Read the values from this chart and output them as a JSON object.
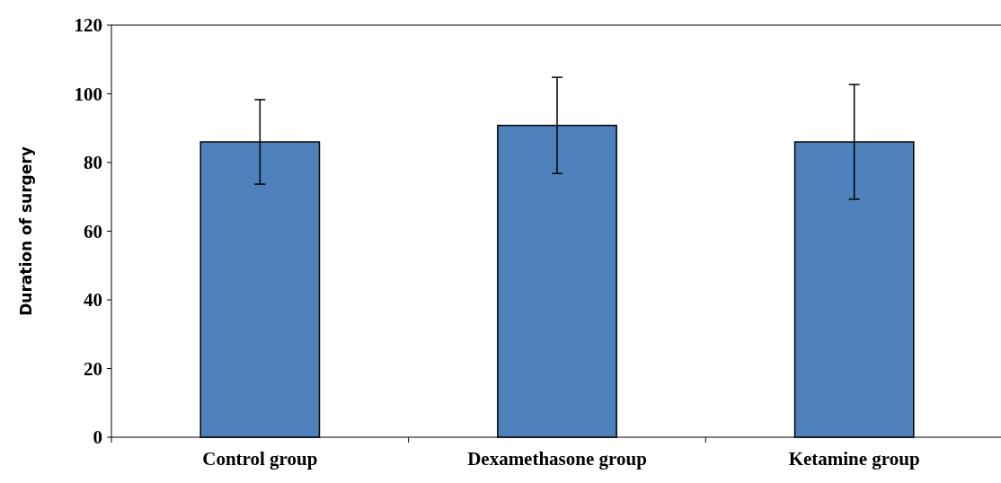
{
  "chart_data": {
    "type": "bar",
    "ylabel": "Duration of surgery",
    "categories": [
      "Control group",
      "Dexamethasone group",
      "Ketamine group"
    ],
    "values": [
      86,
      90.8,
      86
    ],
    "errors": [
      12.3,
      14,
      16.7
    ],
    "color": "#4f81bd",
    "ylim": [
      0,
      120
    ],
    "yticks": [
      0,
      20,
      40,
      60,
      80,
      100,
      120
    ],
    "grid": false
  }
}
